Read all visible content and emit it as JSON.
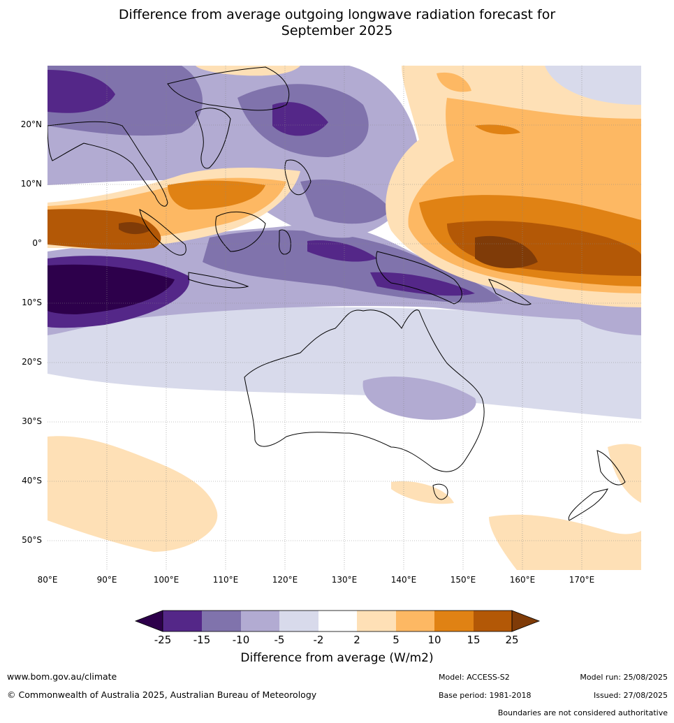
{
  "title_line1": "Difference from average outgoing longwave radiation forecast for",
  "title_line2": "September 2025",
  "lat_labels": [
    "20°N",
    "10°N",
    "0°",
    "10°S",
    "20°S",
    "30°S",
    "40°S",
    "50°S"
  ],
  "lon_labels": [
    "80°E",
    "90°E",
    "100°E",
    "110°E",
    "120°E",
    "130°E",
    "140°E",
    "150°E",
    "160°E",
    "170°E"
  ],
  "colorbar": {
    "ticks": [
      "-25",
      "-15",
      "-10",
      "-5",
      "-2",
      "2",
      "5",
      "10",
      "15",
      "25"
    ],
    "colors": [
      "#2d004b",
      "#542788",
      "#8073ac",
      "#b2abd2",
      "#d8daeb",
      "#ffffff",
      "#fee0b6",
      "#fdb863",
      "#e08214",
      "#b35806",
      "#7f3b08"
    ],
    "label": "Difference from average (W/m2)"
  },
  "footer": {
    "url": "www.bom.gov.au/climate",
    "copyright": "© Commonwealth of Australia 2025, Australian Bureau of Meteorology",
    "model": "Model: ACCESS-S2",
    "base_period": "Base period: 1981-2018",
    "model_run": "Model run: 25/08/2025",
    "issued": "Issued: 27/08/2025",
    "disclaimer": "Boundaries are not considered authoritative"
  }
}
